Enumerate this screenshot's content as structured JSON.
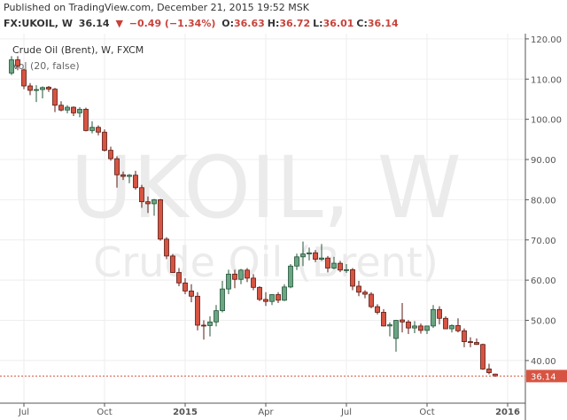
{
  "header": {
    "published": "Published on TradingView.com, December 21, 2015 19:52 MSK",
    "symbol": "FX:UKOIL, W",
    "last": "36.14",
    "arrow": "▼",
    "change": "−0.49 (−1.34%)",
    "ohlc": [
      {
        "key": "O:",
        "value": "36.63"
      },
      {
        "key": "H:",
        "value": "36.72"
      },
      {
        "key": "L:",
        "value": "36.01"
      },
      {
        "key": "C:",
        "value": "36.14"
      }
    ]
  },
  "chart_data": {
    "type": "candlestick",
    "series_name": "Crude Oil (Brent), W, FXCM",
    "indicator": "Vol (20, false)",
    "watermark": [
      "UKOIL, W",
      "Crude Oil (Brent)"
    ],
    "categories": [
      null,
      null,
      "Jul",
      null,
      null,
      null,
      null,
      null,
      null,
      null,
      null,
      null,
      null,
      null,
      null,
      "Oct",
      null,
      null,
      null,
      null,
      null,
      null,
      null,
      null,
      null,
      null,
      null,
      null,
      "2015",
      null,
      null,
      null,
      null,
      null,
      null,
      null,
      null,
      null,
      null,
      null,
      null,
      "Apr",
      null,
      null,
      null,
      null,
      null,
      null,
      null,
      null,
      null,
      null,
      null,
      null,
      "Jul",
      null,
      null,
      null,
      null,
      null,
      null,
      null,
      null,
      null,
      null,
      null,
      null,
      "Oct",
      null,
      null,
      null,
      null,
      null,
      null,
      null,
      null,
      null,
      null,
      null,
      null,
      "2016"
    ],
    "open": [
      111.5,
      114.8,
      112.3,
      108.3,
      107.2,
      107.4,
      108.0,
      107.5,
      103.5,
      102.3,
      103.0,
      101.6,
      102.5,
      97.2,
      98.0,
      96.8,
      92.3,
      90.2,
      86.2,
      85.8,
      86.1,
      83.0,
      79.5,
      79.0,
      80.0,
      70.2,
      66.0,
      61.9,
      59.3,
      57.3,
      56.0,
      48.8,
      48.7,
      49.6,
      52.4,
      57.8,
      61.5,
      60.2,
      62.5,
      60.5,
      58.2,
      55.2,
      54.7,
      56.4,
      55.0,
      58.3,
      63.5,
      65.8,
      66.5,
      66.8,
      65.2,
      65.5,
      63.0,
      64.2,
      62.5,
      62.6,
      58.5,
      57.0,
      56.5,
      53.4,
      52.0,
      48.6,
      45.5,
      50.1,
      49.6,
      48.1,
      48.6,
      47.5,
      48.6,
      52.7,
      50.5,
      47.9,
      48.7,
      47.4,
      44.7,
      44.5,
      44.0,
      37.9,
      36.63,
      null,
      null
    ],
    "high": [
      115.7,
      115.7,
      112.6,
      109.0,
      108.5,
      108.2,
      108.3,
      107.8,
      104.5,
      103.5,
      103.2,
      103.0,
      102.9,
      99.5,
      98.5,
      97.5,
      93.2,
      90.8,
      87.0,
      86.4,
      87.2,
      83.7,
      80.8,
      80.2,
      80.2,
      70.7,
      66.5,
      63.0,
      60.5,
      59.0,
      57.0,
      50.0,
      51.0,
      53.8,
      59.8,
      62.6,
      62.6,
      62.8,
      63.0,
      61.5,
      58.5,
      57.0,
      56.5,
      57.0,
      59.0,
      64.0,
      66.6,
      69.6,
      68.1,
      67.5,
      69.0,
      66.0,
      65.8,
      64.8,
      64.0,
      63.0,
      59.8,
      57.5,
      57.0,
      54.0,
      52.8,
      49.5,
      50.1,
      54.3,
      50.1,
      49.8,
      49.2,
      48.6,
      53.8,
      53.5,
      51.0,
      49.0,
      50.5,
      48.0,
      45.8,
      45.5,
      44.2,
      39.2,
      36.72,
      null,
      null
    ],
    "low": [
      111.0,
      112.2,
      107.5,
      106.0,
      104.3,
      105.2,
      106.8,
      101.8,
      102.0,
      101.5,
      100.8,
      100.5,
      97.0,
      96.5,
      96.0,
      92.0,
      89.7,
      83.0,
      84.9,
      84.1,
      82.5,
      78.0,
      76.7,
      76.0,
      69.8,
      65.2,
      61.8,
      58.5,
      56.5,
      54.5,
      47.5,
      45.2,
      46.0,
      48.5,
      52.0,
      56.5,
      58.0,
      59.0,
      59.5,
      57.5,
      54.8,
      53.6,
      53.8,
      54.3,
      54.8,
      58.0,
      62.5,
      63.5,
      64.9,
      64.5,
      64.8,
      61.9,
      62.7,
      62.0,
      61.8,
      57.5,
      56.0,
      55.5,
      53.0,
      51.5,
      48.5,
      46.0,
      42.2,
      47.0,
      46.6,
      46.8,
      46.7,
      46.6,
      48.1,
      49.0,
      47.8,
      47.0,
      47.0,
      43.3,
      43.3,
      43.9,
      37.7,
      36.6,
      36.01,
      null,
      null
    ],
    "close": [
      114.8,
      113.3,
      108.3,
      107.2,
      107.4,
      107.9,
      107.5,
      103.5,
      102.3,
      103.0,
      101.6,
      102.5,
      97.2,
      98.0,
      96.8,
      92.3,
      90.2,
      86.2,
      85.8,
      86.1,
      83.0,
      79.5,
      79.0,
      80.0,
      70.2,
      66.0,
      61.9,
      59.3,
      57.3,
      56.0,
      48.8,
      48.7,
      49.6,
      52.4,
      57.8,
      61.5,
      60.2,
      62.5,
      60.5,
      58.2,
      55.2,
      54.7,
      56.4,
      55.0,
      58.3,
      63.5,
      65.8,
      66.5,
      66.8,
      65.2,
      65.5,
      63.0,
      64.2,
      62.5,
      62.6,
      58.5,
      57.0,
      56.5,
      53.4,
      52.0,
      48.6,
      48.9,
      50.0,
      49.6,
      48.1,
      48.6,
      47.5,
      48.6,
      52.7,
      50.5,
      47.9,
      48.7,
      47.4,
      44.7,
      44.5,
      44.0,
      37.9,
      37.0,
      36.14,
      null,
      null
    ],
    "up_color": "#6ba583",
    "down_color": "#d75442",
    "ylim": [
      29.4,
      121.3
    ],
    "yticks": [
      {
        "value": 40,
        "label": "40.00"
      },
      {
        "value": 50,
        "label": "50.00"
      },
      {
        "value": 60,
        "label": "60.00"
      },
      {
        "value": 70,
        "label": "70.00"
      },
      {
        "value": 80,
        "label": "80.00"
      },
      {
        "value": 90,
        "label": "90.00"
      },
      {
        "value": 100,
        "label": "100.00"
      },
      {
        "value": 110,
        "label": "110.00"
      },
      {
        "value": 120,
        "label": "120.00"
      }
    ],
    "grid": true,
    "last_price": 36.14
  }
}
